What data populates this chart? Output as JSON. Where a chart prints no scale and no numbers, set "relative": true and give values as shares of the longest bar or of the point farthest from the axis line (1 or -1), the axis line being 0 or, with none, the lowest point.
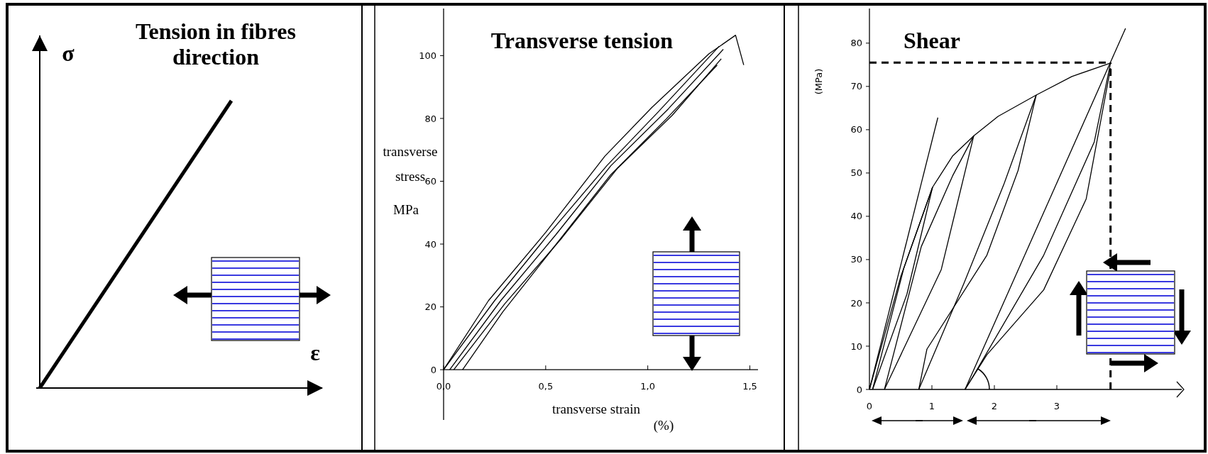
{
  "chart_data": [
    {
      "type": "line",
      "title": "Tension in fibres direction",
      "xlabel": "ε",
      "ylabel": "σ",
      "relative": true,
      "categories": [
        null,
        null
      ],
      "values": [
        0,
        1
      ],
      "color": "#000000"
    },
    {
      "type": "line",
      "title": "Transverse tension",
      "xlabel": "transverse strain (%)",
      "ylabel": "transverse stress MPa",
      "xlim": [
        0,
        1.54
      ],
      "ylim": [
        -16,
        115
      ],
      "xticks": [
        {
          "value": 0,
          "label": "0,0"
        },
        {
          "value": 0.5,
          "label": "0,5"
        },
        {
          "value": 1,
          "label": "1,0"
        },
        {
          "value": 1.5,
          "label": "1,5"
        }
      ],
      "yticks": [
        0,
        20,
        40,
        60,
        80,
        100
      ],
      "series": [
        {
          "color": "#000000",
          "x": [
            0,
            0.22,
            0.5,
            0.79,
            1.02,
            1.3,
            1.43,
            1.47
          ],
          "values": [
            0,
            22,
            43.7,
            68,
            83.5,
            100.6,
            106.5,
            97
          ]
        },
        {
          "color": "#000000",
          "x": [
            0,
            0.25,
            0.5,
            0.8,
            1.05,
            1.35
          ],
          "values": [
            0,
            22,
            42,
            65,
            82,
            103
          ]
        },
        {
          "color": "#000000",
          "x": [
            0.03,
            0.28,
            0.55,
            0.82,
            1.1,
            1.37
          ],
          "values": [
            0,
            22,
            43,
            65,
            83,
            102
          ]
        },
        {
          "color": "#000000",
          "x": [
            0.05,
            0.3,
            0.58,
            0.85,
            1.12,
            1.36
          ],
          "values": [
            0,
            21,
            42,
            64,
            81,
            99
          ]
        },
        {
          "color": "#000000",
          "x": [
            0.093,
            0.29,
            0.54,
            0.815,
            1.09,
            1.34
          ],
          "values": [
            0,
            18.4,
            39,
            61.8,
            79.8,
            97
          ]
        }
      ]
    },
    {
      "type": "line",
      "title": "Shear",
      "ylabel": "(MPa)",
      "xlim": [
        0,
        5
      ],
      "ylim": [
        0,
        88
      ],
      "xticks": [
        0,
        1,
        2,
        3
      ],
      "yticks": [
        0,
        10,
        20,
        30,
        40,
        50,
        60,
        70,
        80
      ],
      "series": [
        {
          "color": "#000000",
          "x": [
            0,
            1.095
          ],
          "values": [
            0,
            62.8
          ]
        },
        {
          "color": "#000000",
          "x": [
            1.53,
            4.1
          ],
          "values": [
            0,
            83.4
          ]
        },
        {
          "color": "#000000",
          "x": [
            0,
            0.5,
            1.01,
            1.33,
            1.67,
            2.06,
            2.67,
            3.24,
            3.86
          ],
          "values": [
            0,
            26,
            46.7,
            53.9,
            58.6,
            63.1,
            68,
            72.3,
            75.4
          ]
        },
        {
          "color": "#000000",
          "x": [
            0.05,
            0.6,
            1.01
          ],
          "values": [
            0,
            22,
            46.7
          ]
        },
        {
          "color": "#000000",
          "x": [
            0.05,
            0.55,
            1.01
          ],
          "values": [
            0,
            28,
            46.7
          ]
        },
        {
          "color": "#000000",
          "x": [
            0.24,
            1.15,
            1.47,
            1.67
          ],
          "values": [
            0,
            27.7,
            46.7,
            58.6
          ]
        },
        {
          "color": "#000000",
          "x": [
            0.24,
            0.83,
            1.33,
            1.67
          ],
          "values": [
            0,
            33,
            49.3,
            58.6
          ]
        },
        {
          "color": "#000000",
          "x": [
            0.79,
            0.92,
            1.88,
            2.38,
            2.67
          ],
          "values": [
            0,
            9.3,
            31,
            50.6,
            68
          ]
        },
        {
          "color": "#000000",
          "x": [
            0.79,
            1.51,
            2.15,
            2.67
          ],
          "values": [
            0,
            24.4,
            47.3,
            68
          ]
        },
        {
          "color": "#000000",
          "x": [
            1.53,
            1.65,
            2.79,
            3.6,
            3.86
          ],
          "values": [
            0,
            2.8,
            31,
            57.2,
            75.4
          ]
        },
        {
          "color": "#000000",
          "x": [
            1.53,
            1.88,
            2.79,
            3.47,
            3.86
          ],
          "values": [
            0,
            8,
            23,
            44,
            74.2
          ]
        },
        {
          "color": "#000000",
          "line_style": "dashed",
          "x": [
            0,
            3.86
          ],
          "values": [
            75.5,
            75.5
          ]
        },
        {
          "color": "#000000",
          "line_style": "dashed",
          "x": [
            3.86,
            3.86
          ],
          "values": [
            0,
            75.5
          ]
        }
      ]
    }
  ]
}
